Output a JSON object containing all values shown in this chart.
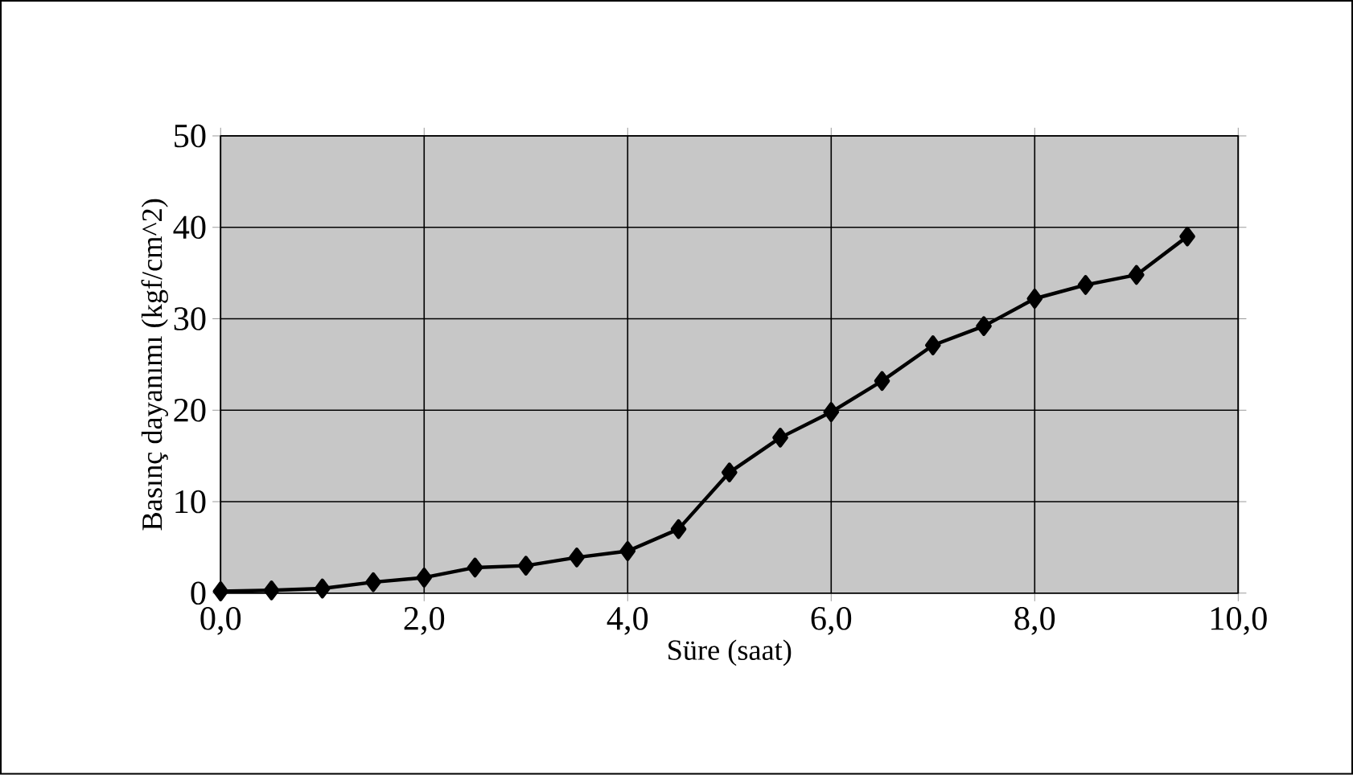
{
  "chart_data": {
    "type": "line",
    "xlabel": "Süre (saat)",
    "ylabel": "Basınç dayanımı (kgf/cm^2)",
    "x": [
      0,
      0.5,
      1,
      1.5,
      2,
      2.5,
      3,
      3.5,
      4,
      4.5,
      5,
      5.5,
      6,
      6.5,
      7,
      7.5,
      8,
      8.5,
      9,
      9.5
    ],
    "values": [
      0.2,
      0.3,
      0.5,
      1.2,
      1.7,
      2.8,
      3.0,
      3.9,
      4.6,
      7.0,
      13.2,
      17.0,
      19.8,
      23.2,
      27.1,
      29.2,
      32.2,
      33.7,
      34.8,
      39.0
    ],
    "color": "#000000",
    "marker": "diamond",
    "line_style": "solid",
    "grid": true,
    "xlim": [
      0,
      10
    ],
    "ylim": [
      0,
      50
    ],
    "xticks": [
      {
        "value": 0,
        "label": "0,0"
      },
      {
        "value": 2,
        "label": "2,0"
      },
      {
        "value": 4,
        "label": "4,0"
      },
      {
        "value": 6,
        "label": "6,0"
      },
      {
        "value": 8,
        "label": "8,0"
      },
      {
        "value": 10,
        "label": "10,0"
      }
    ],
    "yticks": [
      0,
      10,
      20,
      30,
      40,
      50
    ]
  }
}
